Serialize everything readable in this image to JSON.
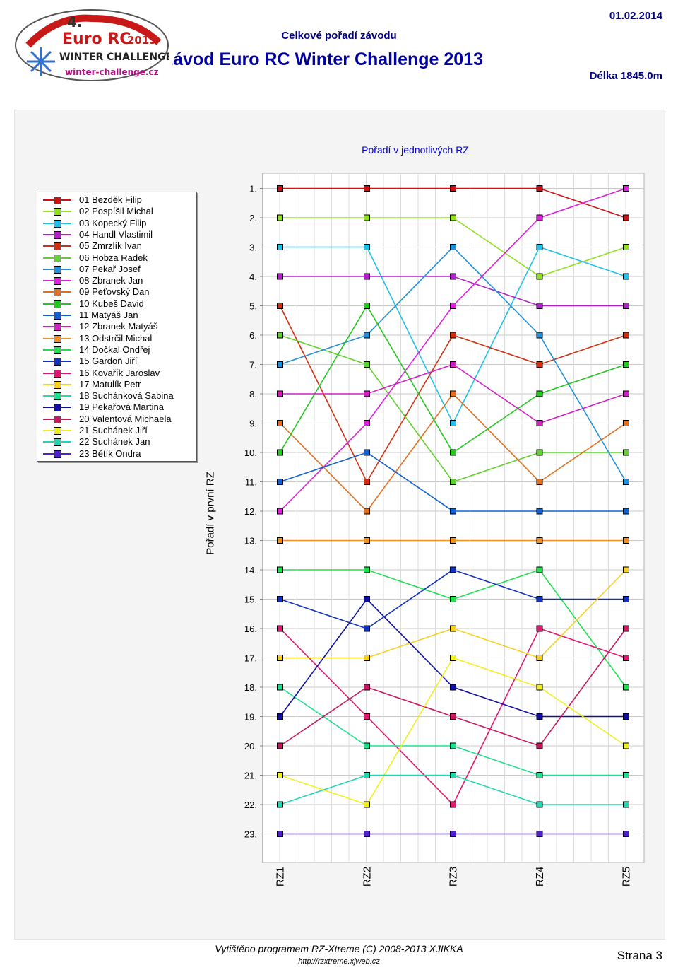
{
  "header": {
    "title": "Celkové pořadí závodu",
    "date": "01.02.2014",
    "subtitle": "4. závod Euro RC Winter Challenge 2013",
    "length": "Délka 1845.0m"
  },
  "logo": {
    "number": "4.",
    "brand": "Euro RC",
    "year": "2013",
    "series": "WINTER CHALLENGE",
    "website": "winter-challenge.cz"
  },
  "footer": {
    "program": "Vytištěno programem RZ-Xtreme (C) 2008-2013  XJIKKA",
    "url": "http://rzxtreme.xjweb.cz",
    "page": "Strana 3"
  },
  "chart_data": {
    "type": "line",
    "title": "Pořadí v jednotlivých RZ",
    "ylabel": "Pořadí v první RZ",
    "ylim": [
      1,
      23
    ],
    "y_inverted": true,
    "categories": [
      "RZ1",
      "RZ2",
      "RZ3",
      "RZ4",
      "RZ5"
    ],
    "y_ticks": [
      "1.",
      "2.",
      "3.",
      "4.",
      "5.",
      "6.",
      "7.",
      "8.",
      "9.",
      "10.",
      "11.",
      "12.",
      "13.",
      "14.",
      "15.",
      "16.",
      "17.",
      "18.",
      "19.",
      "20.",
      "21.",
      "22.",
      "23."
    ],
    "legend_placement": "left",
    "grid": true,
    "series": [
      {
        "name": "01 Bezděk Filip",
        "color": "#d01010",
        "values": [
          1,
          1,
          1,
          1,
          2
        ]
      },
      {
        "name": "02 Pospíšil Michal",
        "color": "#90e020",
        "values": [
          2,
          2,
          2,
          4,
          3
        ]
      },
      {
        "name": "03 Kopecký Filip",
        "color": "#20c0e8",
        "values": [
          3,
          3,
          9,
          3,
          4
        ]
      },
      {
        "name": "04 Handl Vlastimil",
        "color": "#b020c8",
        "values": [
          4,
          4,
          4,
          5,
          5
        ]
      },
      {
        "name": "05 Zmrzlík Ivan",
        "color": "#d03010",
        "values": [
          5,
          11,
          6,
          7,
          6
        ]
      },
      {
        "name": "06 Hobza Radek",
        "color": "#60d030",
        "values": [
          6,
          7,
          11,
          10,
          10
        ]
      },
      {
        "name": "07 Pekař Josef",
        "color": "#2090d8",
        "values": [
          7,
          6,
          3,
          6,
          11
        ]
      },
      {
        "name": "08 Zbranek Jan",
        "color": "#e020e0",
        "values": [
          12,
          9,
          5,
          2,
          1
        ]
      },
      {
        "name": "09 Peťovský Dan",
        "color": "#e07020",
        "values": [
          9,
          12,
          8,
          11,
          9
        ]
      },
      {
        "name": "10 Kubeš David",
        "color": "#20c820",
        "values": [
          10,
          5,
          10,
          8,
          7
        ]
      },
      {
        "name": "11 Matyáš Jan",
        "color": "#1060d0",
        "values": [
          11,
          10,
          12,
          12,
          12
        ]
      },
      {
        "name": "12 Zbranek Matyáš",
        "color": "#d020c0",
        "values": [
          8,
          8,
          7,
          9,
          8
        ]
      },
      {
        "name": "13 Odstrčil Michal",
        "color": "#f09020",
        "values": [
          13,
          13,
          13,
          13,
          13
        ]
      },
      {
        "name": "14 Dočkal Ondřej",
        "color": "#20e050",
        "values": [
          14,
          14,
          15,
          14,
          18
        ]
      },
      {
        "name": "15 Gardoň Jiří",
        "color": "#1030c0",
        "values": [
          15,
          16,
          14,
          15,
          15
        ]
      },
      {
        "name": "16 Kovařík Jaroslav",
        "color": "#e01870",
        "values": [
          16,
          19,
          22,
          16,
          17
        ]
      },
      {
        "name": "17 Matulík Petr",
        "color": "#f8d020",
        "values": [
          17,
          17,
          16,
          17,
          14
        ]
      },
      {
        "name": "18 Suchánková Sabina",
        "color": "#20e090",
        "values": [
          18,
          20,
          20,
          21,
          21
        ]
      },
      {
        "name": "19 Pekařová Martina",
        "color": "#1010a0",
        "values": [
          19,
          15,
          18,
          19,
          19
        ]
      },
      {
        "name": "20 Valentová Michaela",
        "color": "#c81860",
        "values": [
          20,
          18,
          19,
          20,
          16
        ]
      },
      {
        "name": "21 Suchánek Jiří",
        "color": "#f0f020",
        "values": [
          21,
          22,
          17,
          18,
          20
        ]
      },
      {
        "name": "22 Suchánek Jan",
        "color": "#20d8b0",
        "values": [
          22,
          21,
          21,
          22,
          22
        ]
      },
      {
        "name": "23 Bětík Ondra",
        "color": "#5020c8",
        "values": [
          23,
          23,
          23,
          23,
          23
        ]
      }
    ]
  }
}
